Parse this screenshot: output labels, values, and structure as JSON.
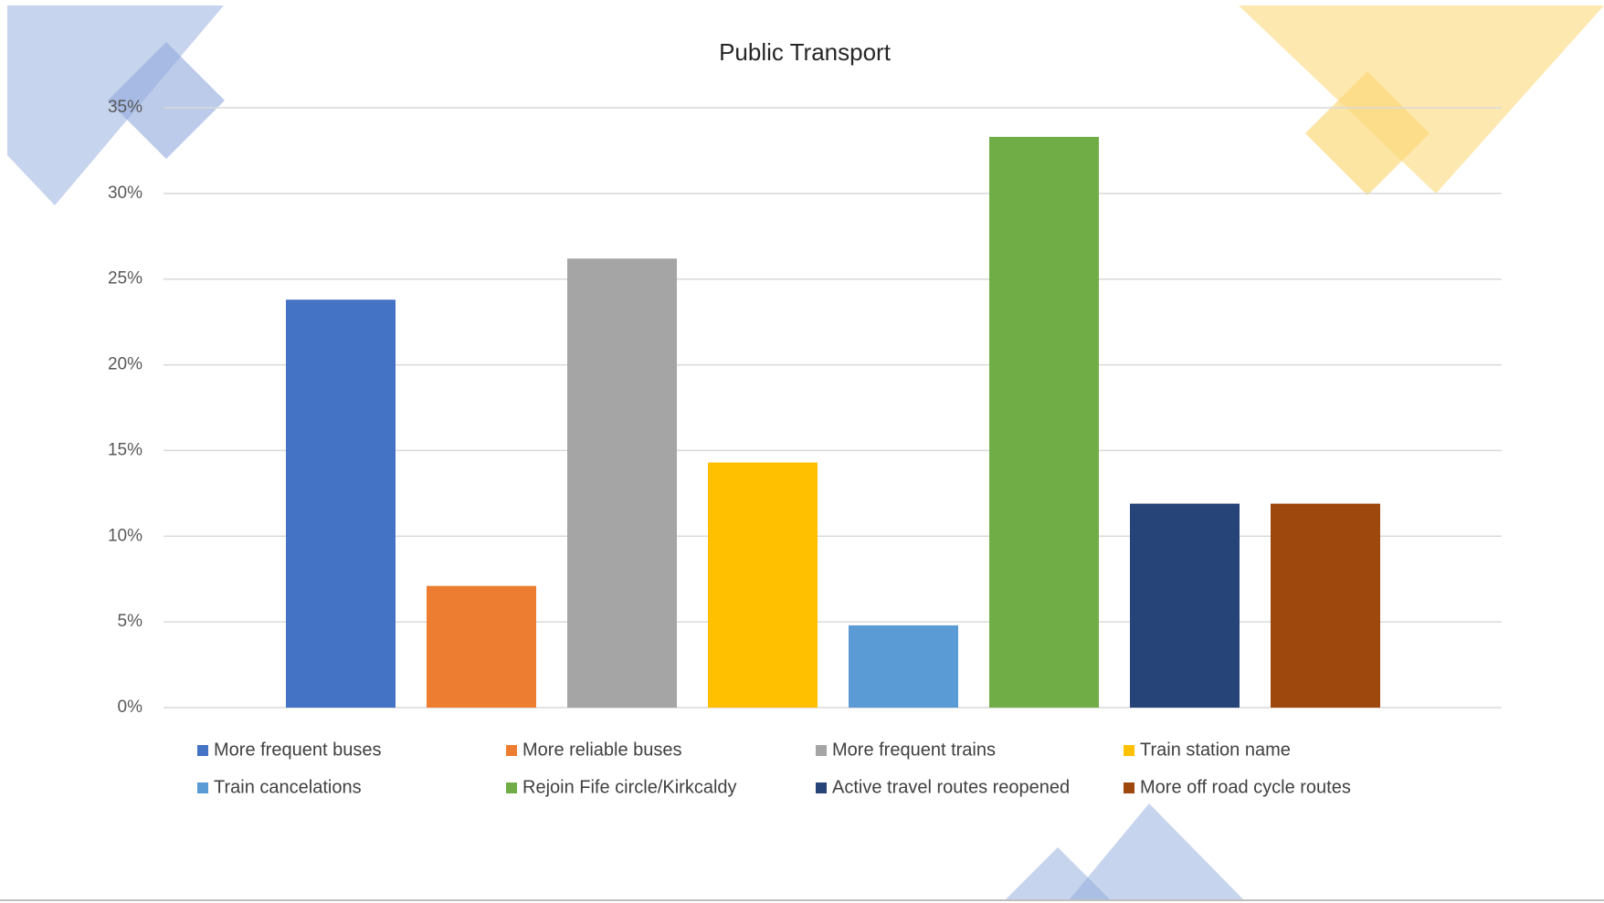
{
  "chart_data": {
    "type": "bar",
    "title": "Public Transport",
    "categories": [
      null
    ],
    "series": [
      {
        "name": "More frequent buses",
        "color": "#4472c4",
        "values": [
          23.8
        ]
      },
      {
        "name": "More reliable buses",
        "color": "#ed7d31",
        "values": [
          7.1
        ]
      },
      {
        "name": "More frequent trains",
        "color": "#a5a5a5",
        "values": [
          26.2
        ]
      },
      {
        "name": "Train station name",
        "color": "#ffc000",
        "values": [
          14.3
        ]
      },
      {
        "name": "Train cancelations",
        "color": "#5b9bd5",
        "values": [
          4.8
        ]
      },
      {
        "name": "Rejoin Fife circle/Kirkcaldy",
        "color": "#70ad47",
        "values": [
          33.3
        ]
      },
      {
        "name": "Active travel routes reopened",
        "color": "#264478",
        "values": [
          11.9
        ]
      },
      {
        "name": "More off road cycle routes",
        "color": "#9e480e",
        "values": [
          11.9
        ]
      }
    ],
    "ylim": [
      0,
      35
    ],
    "yticks": [
      {
        "value": 0,
        "label": "0%"
      },
      {
        "value": 5,
        "label": "5%"
      },
      {
        "value": 10,
        "label": "10%"
      },
      {
        "value": 15,
        "label": "15%"
      },
      {
        "value": 20,
        "label": "20%"
      },
      {
        "value": 25,
        "label": "25%"
      },
      {
        "value": 30,
        "label": "30%"
      },
      {
        "value": 35,
        "label": "35%"
      }
    ],
    "grid": true,
    "legend": "bottom"
  }
}
